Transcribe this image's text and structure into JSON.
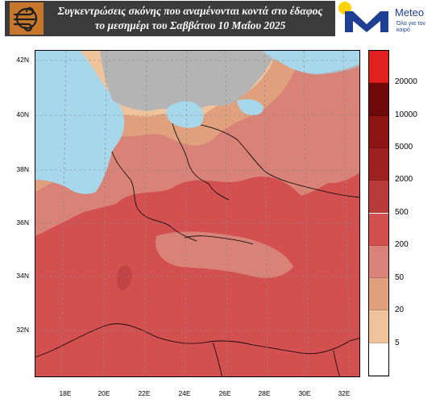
{
  "header": {
    "title_line1": "Συγκεντρώσεις σκόνης που αναμένονται κοντά στο έδαφος",
    "title_line2": "το μεσημέρι του Σαββάτου 10 Μαΐου 2025",
    "logo_icon": "wind-icon",
    "brand_name": "Meteo",
    "brand_tagline": "Όλα για τον καιρό",
    "brand_color": "#1f3f94"
  },
  "map": {
    "lat_ticks": [
      "42N",
      "40N",
      "38N",
      "36N",
      "34N",
      "32N"
    ],
    "lon_ticks": [
      "18E",
      "20E",
      "22E",
      "24E",
      "26E",
      "28E",
      "30E",
      "32E"
    ],
    "colors": {
      "sea_no_dust": "#a6d7ea",
      "land_no_data": "#b4b4b4",
      "coastline": "#000000"
    }
  },
  "legend": {
    "labels": [
      "20000",
      "10000",
      "5000",
      "2000",
      "500",
      "200",
      "50",
      "20",
      "5"
    ],
    "colors": [
      "#e0211f",
      "#6e0a0a",
      "#8e1414",
      "#9e2020",
      "#b83a3a",
      "#d35050",
      "#d88278",
      "#e0a07e",
      "#efc39b",
      "#ffffff"
    ]
  }
}
